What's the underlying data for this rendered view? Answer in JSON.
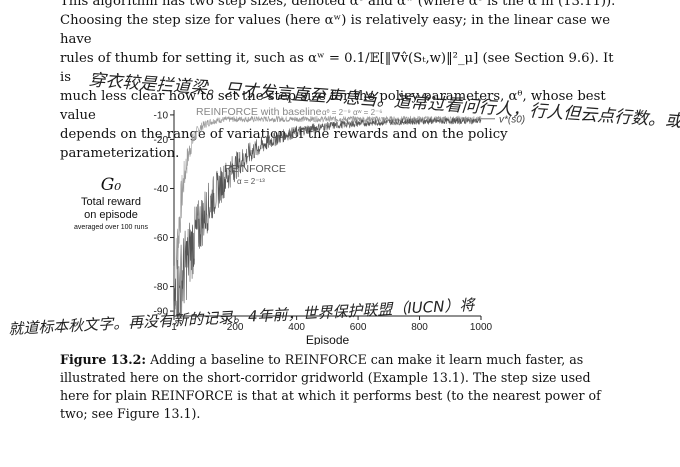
{
  "paragraph": {
    "line1": "This algorithm has two step sizes, denoted αᶿ and αʷ (where αᶿ is the α in (13.11)).",
    "line2": "Choosing the step size for values (here αʷ) is relatively easy; in the linear case we have",
    "line3": "rules of thumb for setting it, such as αʷ = 0.1/𝔼[‖∇v̂(Sₜ,w)‖²_μ] (see Section 9.6). It is",
    "line4": "much less clear how to set the step size for the policy parameters, αᶿ, whose best value",
    "line5": "depends on the range of variation of the rewards and on the policy parameterization."
  },
  "chart_data": {
    "type": "line",
    "xlabel": "Episode",
    "ylabel_lines": [
      "G₀",
      "Total reward",
      "on episode",
      "averaged over 100 runs"
    ],
    "x_ticks": [
      1,
      200,
      400,
      600,
      800,
      1000
    ],
    "y_ticks": [
      -10,
      -20,
      -40,
      -60,
      -80,
      -90
    ],
    "xlim": [
      1,
      1000
    ],
    "ylim": [
      -92,
      -8
    ],
    "reference_line": {
      "label": "v*(s0)",
      "value": -11.6
    },
    "series": [
      {
        "name": "REINFORCE with baseline",
        "label_params": "αᶿ = 2⁻⁹   αʷ = 2⁻⁶",
        "color": "#9a9a9a",
        "start": -90,
        "end": -11.7,
        "rate": 28
      },
      {
        "name": "REINFORCE",
        "label_params": "α = 2⁻¹³",
        "color": "#555555",
        "start": -90,
        "end": -12.4,
        "rate": 140
      }
    ]
  },
  "caption": {
    "label": "Figure 13.2:",
    "text": "Adding a baseline to REINFORCE can make it learn much faster, as illustrated here on the short-corridor gridworld (Example 13.1). The step size used here for plain REINFORCE is that at which it performs best (to the nearest power of two; see Figure 13.1)."
  },
  "handwriting": {
    "line1": "穿衣较是拦道梁。只才发言直至声息当。道常过看问行人，行人但云点行数。或",
    "line2": "就道标本秋文字。再没有新的记录。4年前，世界保护联盟（IUCN）将"
  }
}
